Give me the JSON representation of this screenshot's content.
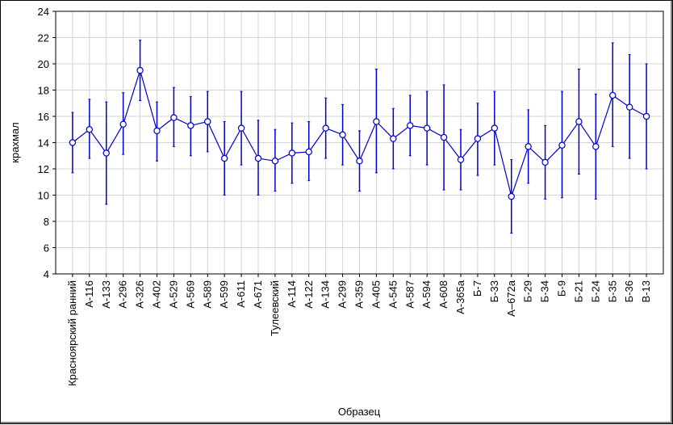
{
  "chart_data": {
    "type": "line",
    "title": "",
    "xlabel": "Образец",
    "ylabel": "крахмал",
    "ylim": [
      4,
      24
    ],
    "yticks": [
      4,
      6,
      8,
      10,
      12,
      14,
      16,
      18,
      20,
      22,
      24
    ],
    "grid": true,
    "color": "#0000cc",
    "categories": [
      "Красноярский ранний",
      "А-116",
      "А-133",
      "А-296",
      "А-326",
      "А-402",
      "А-529",
      "А-569",
      "А-589",
      "А-599",
      "А-611",
      "А-671",
      "Тулеевский",
      "А-114",
      "А-122",
      "А-134",
      "А-299",
      "А-359",
      "А-405",
      "А-545",
      "А-587",
      "А-594",
      "А-608",
      "А-365а",
      "Б-7",
      "Б-33",
      "А–672а",
      "Б-29",
      "Б-34",
      "Б-9",
      "Б-21",
      "Б-24",
      "Б-35",
      "Б-36",
      "В-13"
    ],
    "series": [
      {
        "values": [
          14.0,
          15.0,
          13.2,
          15.4,
          19.5,
          14.9,
          15.9,
          15.3,
          15.6,
          12.8,
          15.1,
          12.8,
          12.6,
          13.2,
          13.3,
          15.1,
          14.6,
          12.6,
          15.6,
          14.3,
          15.3,
          15.1,
          14.4,
          12.7,
          14.3,
          15.1,
          9.9,
          13.7,
          12.5,
          13.8,
          15.6,
          13.7,
          17.6,
          16.7,
          16.0
        ],
        "upper": [
          16.3,
          17.3,
          17.1,
          17.8,
          21.8,
          17.1,
          18.2,
          17.5,
          17.9,
          15.6,
          17.9,
          15.7,
          15.0,
          15.5,
          15.6,
          17.4,
          16.9,
          14.9,
          19.6,
          16.6,
          17.6,
          17.9,
          18.4,
          15.0,
          17.0,
          17.9,
          12.7,
          16.5,
          15.3,
          17.9,
          19.6,
          17.7,
          21.6,
          20.7,
          20.0
        ],
        "lower": [
          11.7,
          12.8,
          9.3,
          13.1,
          17.2,
          12.6,
          13.7,
          13.0,
          13.3,
          10.0,
          12.3,
          10.0,
          10.3,
          10.9,
          11.1,
          12.8,
          12.3,
          10.3,
          11.7,
          12.0,
          13.0,
          12.3,
          10.4,
          10.4,
          11.5,
          12.3,
          7.1,
          10.9,
          9.7,
          9.8,
          11.6,
          9.7,
          13.7,
          12.8,
          12.0
        ]
      }
    ]
  }
}
